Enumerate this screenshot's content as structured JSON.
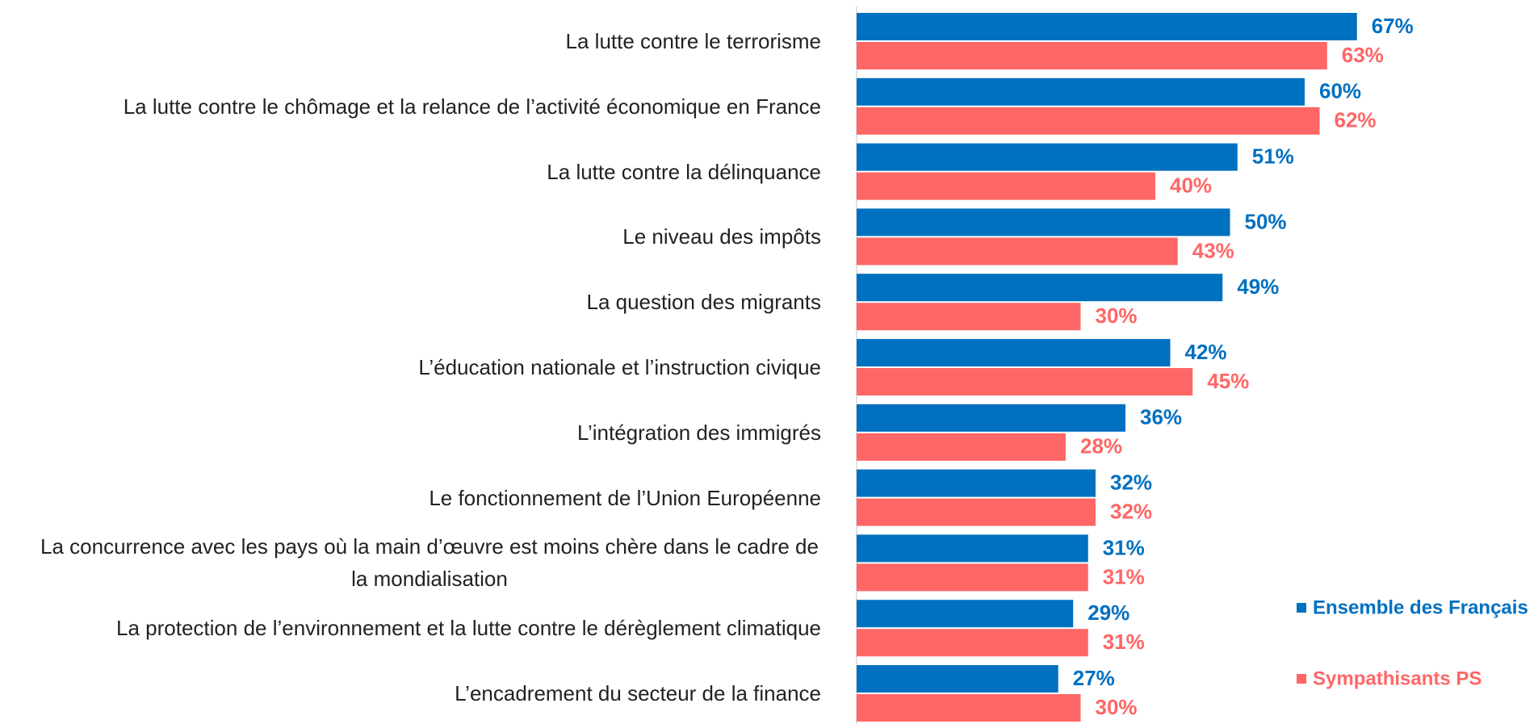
{
  "chart_data": {
    "type": "barh",
    "categories": [
      "La lutte contre le terrorisme",
      "La lutte contre le chômage et la relance de l’activité économique en France",
      "La lutte contre la délinquance",
      "Le niveau des impôts",
      "La question des migrants",
      "L’éducation nationale et l’instruction civique",
      "L’intégration des immigrés",
      "Le fonctionnement de l’Union Européenne",
      "La concurrence avec les pays où la main d’œuvre est moins chère dans le cadre de la mondialisation",
      "La protection de l’environnement et la lutte contre le dérèglement climatique",
      "L’encadrement du secteur de la finance"
    ],
    "series": [
      {
        "name": "Ensemble des Français",
        "color": "#0070c0",
        "values": [
          67,
          60,
          51,
          50,
          49,
          42,
          36,
          32,
          31,
          29,
          27
        ],
        "value_labels": [
          "67%",
          "60%",
          "51%",
          "50%",
          "49%",
          "42%",
          "36%",
          "32%",
          "31%",
          "29%",
          "27%"
        ]
      },
      {
        "name": "Sympathisants PS",
        "color": "#ff6666",
        "values": [
          63,
          62,
          40,
          43,
          30,
          45,
          28,
          32,
          31,
          31,
          30
        ],
        "value_labels": [
          "63%",
          "62%",
          "40%",
          "43%",
          "30%",
          "45%",
          "28%",
          "32%",
          "31%",
          "31%",
          "30%"
        ]
      }
    ],
    "xlim": [
      0,
      80
    ],
    "legend": "right"
  }
}
